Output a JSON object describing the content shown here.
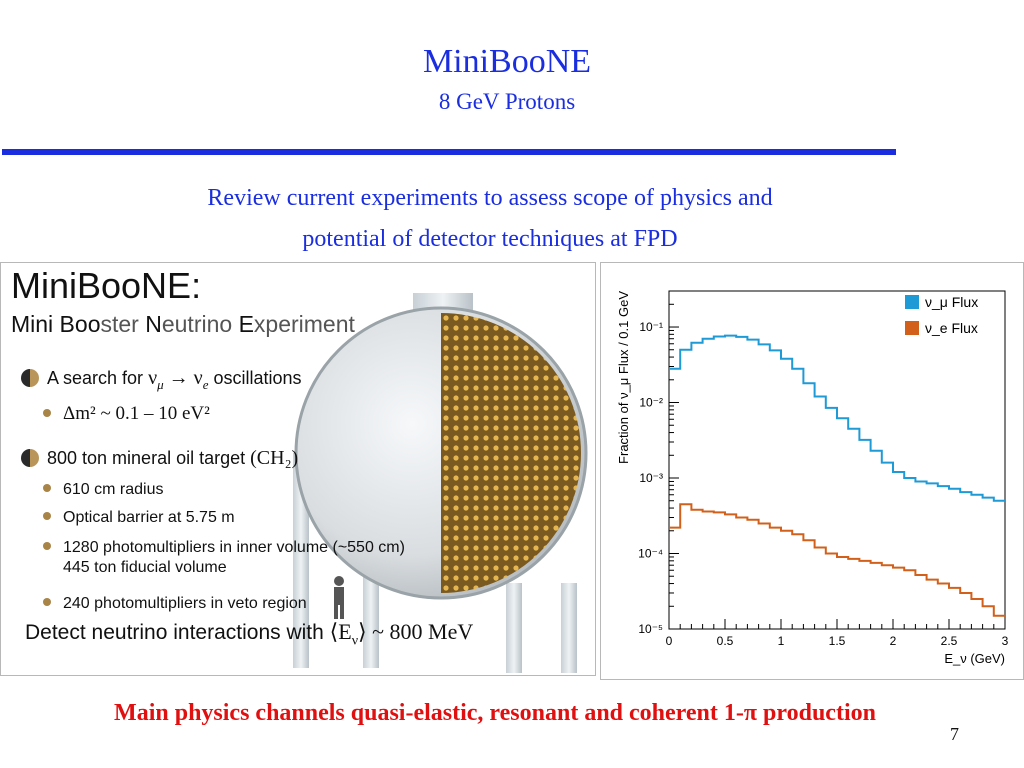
{
  "slide": {
    "title": "MiniBooNE",
    "subtitle": "8 GeV Protons",
    "review_line1": "Review current experiments to assess scope of physics and",
    "review_line2": "potential of detector techniques at FPD",
    "footer": "Main physics channels quasi-elastic, resonant and coherent 1-π production",
    "page_number": "7"
  },
  "left_panel": {
    "title": "MiniBooNE:",
    "subtitle_parts": [
      "Mini Boo",
      "ster ",
      "N",
      "eutrino ",
      "E",
      "xperiment"
    ],
    "b1_text": "A search for",
    "b1_math": "ν",
    "b1_mu": "μ",
    "b1_arrow": " → ",
    "b1_nue": "ν",
    "b1_e": "e",
    "b1_tail": " oscillations",
    "b1_sub": "Δm² ~ 0.1 – 10 eV²",
    "b2_text": "800 ton mineral oil target",
    "b2_formula": "(CH₂)",
    "items": [
      "610 cm radius",
      "Optical barrier at 5.75 m",
      "1280 photomultipliers in inner volume (~550 cm)",
      "445 ton fiducial volume",
      "240 photomultipliers in veto region"
    ],
    "detect_text": "Detect neutrino interactions with",
    "detect_math": "⟨E",
    "detect_math_sub": "ν",
    "detect_math_tail": "⟩ ~ 800 MeV"
  },
  "chart_data": {
    "type": "line",
    "title": "",
    "xlabel": "E_ν (GeV)",
    "ylabel": "Fraction of ν_μ Flux / 0.1 GeV",
    "xlim": [
      0,
      3
    ],
    "ylim": [
      1e-05,
      0.3
    ],
    "log_y": true,
    "x_ticks": [
      "0",
      "0.5",
      "1",
      "1.5",
      "2",
      "2.5",
      "3"
    ],
    "y_ticks": [
      "10⁻⁵",
      "10⁻⁴",
      "10⁻³",
      "10⁻²",
      "10⁻¹"
    ],
    "legend_position": "top-right",
    "series": [
      {
        "name": "ν_μ Flux",
        "color": "#1e9ad6",
        "x": [
          0.05,
          0.15,
          0.25,
          0.35,
          0.45,
          0.55,
          0.65,
          0.75,
          0.85,
          0.95,
          1.05,
          1.15,
          1.25,
          1.35,
          1.45,
          1.55,
          1.65,
          1.75,
          1.85,
          1.95,
          2.05,
          2.15,
          2.25,
          2.35,
          2.45,
          2.55,
          2.65,
          2.75,
          2.85,
          2.95
        ],
        "values": [
          0.028,
          0.05,
          0.062,
          0.07,
          0.075,
          0.077,
          0.074,
          0.068,
          0.059,
          0.049,
          0.038,
          0.028,
          0.018,
          0.012,
          0.0085,
          0.0062,
          0.0045,
          0.0032,
          0.0023,
          0.0016,
          0.0012,
          0.001,
          0.0009,
          0.00085,
          0.00078,
          0.00072,
          0.00065,
          0.0006,
          0.00055,
          0.0005
        ]
      },
      {
        "name": "ν_e Flux",
        "color": "#d2601a",
        "x": [
          0.05,
          0.15,
          0.25,
          0.35,
          0.45,
          0.55,
          0.65,
          0.75,
          0.85,
          0.95,
          1.05,
          1.15,
          1.25,
          1.35,
          1.45,
          1.55,
          1.65,
          1.75,
          1.85,
          1.95,
          2.05,
          2.15,
          2.25,
          2.35,
          2.45,
          2.55,
          2.65,
          2.75,
          2.85,
          2.95
        ],
        "values": [
          0.00022,
          0.00045,
          0.00038,
          0.00036,
          0.00035,
          0.00033,
          0.0003,
          0.00028,
          0.00025,
          0.00022,
          0.0002,
          0.00018,
          0.00015,
          0.00012,
          0.0001,
          9e-05,
          8.5e-05,
          8e-05,
          7.5e-05,
          7e-05,
          6.5e-05,
          6e-05,
          5.2e-05,
          4.5e-05,
          4e-05,
          3.5e-05,
          3e-05,
          2.5e-05,
          2e-05,
          1.5e-05
        ]
      }
    ]
  }
}
